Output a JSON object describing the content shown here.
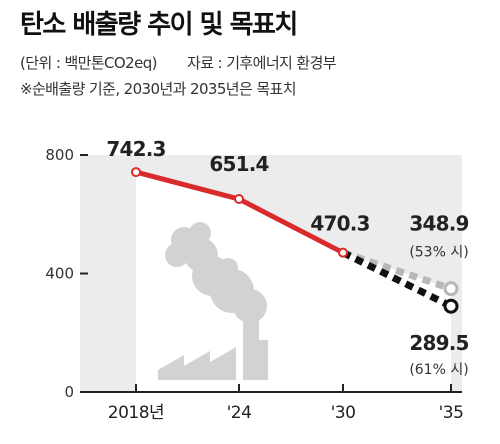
{
  "header": {
    "title": "탄소 배출량 추이 및 목표치",
    "unit": "(단위 : 백만톤CO2eq)",
    "source": "자료 : 기후에너지 환경부",
    "note": "※순배출량 기준, 2030년과 2035년은 목표치"
  },
  "colors": {
    "actual": "#d92b2b",
    "target_upper": "#b7b7b7",
    "target_lower": "#111111",
    "background": "#ececec",
    "icon": "#d2d2d2"
  },
  "chart_data": {
    "type": "line",
    "title": "탄소 배출량 추이 및 목표치",
    "ylim": [
      0,
      800
    ],
    "yticks": [
      0,
      400,
      800
    ],
    "x": [
      "2018년",
      "'24",
      "'30",
      "'35"
    ],
    "series": [
      {
        "style": "solid",
        "points": [
          {
            "x": "2018년",
            "y": 742.3,
            "label": "742.3"
          },
          {
            "x": "'24",
            "y": 651.4,
            "label": "651.4"
          },
          {
            "x": "'30",
            "y": 470.3,
            "label": "470.3"
          }
        ]
      },
      {
        "style": "dashed",
        "points": [
          {
            "x": "'30",
            "y": 470.3
          },
          {
            "x": "'35",
            "y": 348.9,
            "label": "348.9",
            "pct": "(53% 시)"
          }
        ]
      },
      {
        "style": "dashed",
        "points": [
          {
            "x": "'30",
            "y": 470.3
          },
          {
            "x": "'35",
            "y": 289.5,
            "label": "289.5",
            "pct": "(61% 시)"
          }
        ]
      }
    ],
    "grid": false,
    "legend": "none"
  },
  "icon": "factory-smoke-icon"
}
